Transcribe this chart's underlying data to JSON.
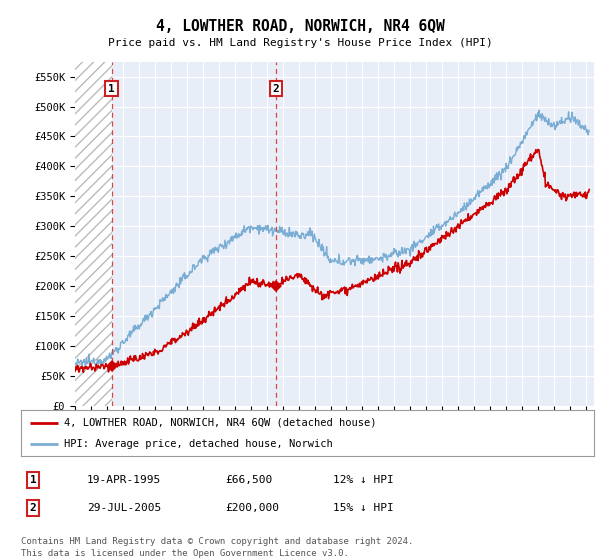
{
  "title": "4, LOWTHER ROAD, NORWICH, NR4 6QW",
  "subtitle": "Price paid vs. HM Land Registry's House Price Index (HPI)",
  "ylim": [
    0,
    575000
  ],
  "yticks": [
    0,
    50000,
    100000,
    150000,
    200000,
    250000,
    300000,
    350000,
    400000,
    450000,
    500000,
    550000
  ],
  "ytick_labels": [
    "£0",
    "£50K",
    "£100K",
    "£150K",
    "£200K",
    "£250K",
    "£300K",
    "£350K",
    "£400K",
    "£450K",
    "£500K",
    "£550K"
  ],
  "hpi_color": "#7aadd4",
  "price_color": "#cc0000",
  "sale1_date_x": 1995.29,
  "sale1_price": 66500,
  "sale1_label": "1",
  "sale2_date_x": 2005.57,
  "sale2_price": 200000,
  "sale2_label": "2",
  "vline_color": "#dd4444",
  "legend_line1": "4, LOWTHER ROAD, NORWICH, NR4 6QW (detached house)",
  "legend_line2": "HPI: Average price, detached house, Norwich",
  "table_row1": [
    "1",
    "19-APR-1995",
    "£66,500",
    "12% ↓ HPI"
  ],
  "table_row2": [
    "2",
    "29-JUL-2005",
    "£200,000",
    "15% ↓ HPI"
  ],
  "footnote": "Contains HM Land Registry data © Crown copyright and database right 2024.\nThis data is licensed under the Open Government Licence v3.0.",
  "background_color": "#ffffff",
  "plot_bg_color": "#e8eef8",
  "hatch_bg_color": "#ffffff",
  "grid_color": "#ffffff",
  "xlim_start": 1993.0,
  "xlim_end": 2025.5
}
